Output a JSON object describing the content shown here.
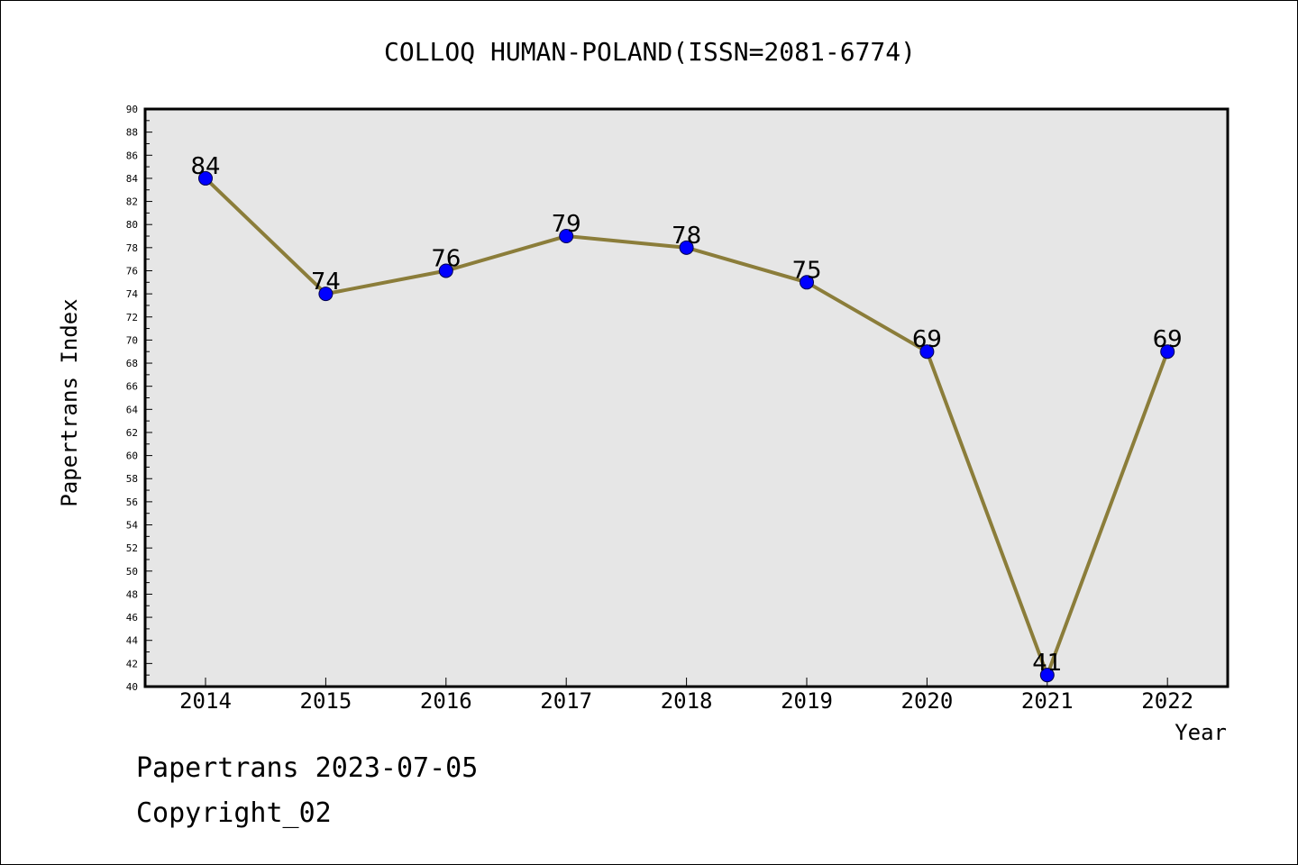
{
  "chart_data": {
    "type": "line",
    "title": "COLLOQ HUMAN-POLAND(ISSN=2081-6774)",
    "xlabel": "Year",
    "ylabel": "Papertrans Index",
    "categories": [
      "2014",
      "2015",
      "2016",
      "2017",
      "2018",
      "2019",
      "2020",
      "2021",
      "2022"
    ],
    "series": [
      {
        "values": [
          84,
          74,
          76,
          79,
          78,
          75,
          69,
          41,
          69
        ]
      }
    ],
    "ylim": [
      40,
      90
    ],
    "ytick_step": 2,
    "grid": false,
    "plot_background": "#e6e6e6",
    "line_color": "#8b7d3a",
    "marker_color": "#0000ff"
  },
  "footer": {
    "line1": "Papertrans 2023-07-05",
    "line2": "Copyright_02"
  }
}
